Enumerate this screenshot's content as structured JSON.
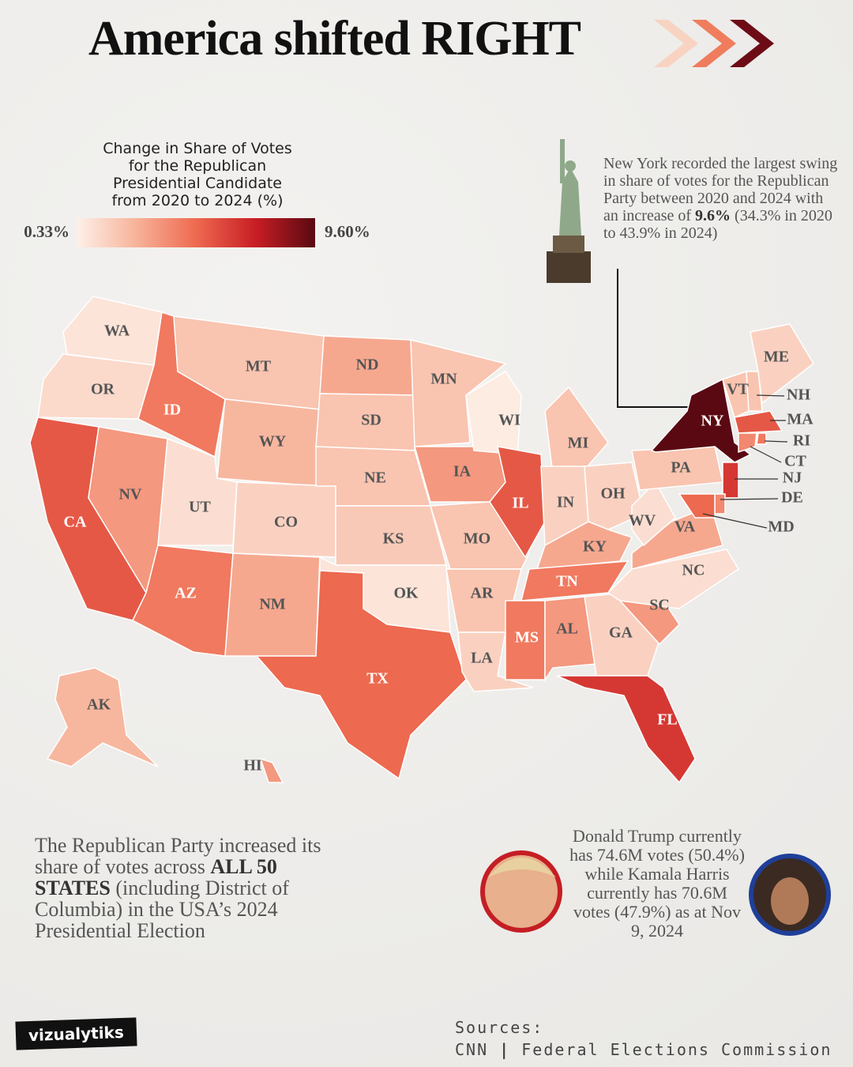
{
  "title": "America shifted RIGHT",
  "legend": {
    "title_lines": [
      "Change in Share of Votes",
      "for the Republican",
      "Presidential Candidate",
      "from 2020 to 2024 (%)"
    ],
    "ticks": [
      {
        "value": 0.33,
        "label": "0.33%"
      },
      {
        "value": 9.6,
        "label": "9.60%"
      }
    ],
    "colors": [
      "#fdf0e8",
      "#f7b39a",
      "#ee6a50",
      "#c81e24",
      "#5a0912"
    ]
  },
  "annotation": {
    "text": "New York recorded the largest swing in share of votes for the Republican Party between 2020 and 2024 with an increase of ",
    "bold": "9.6%",
    "text_end": " (34.3% in 2020 to 43.9% in 2024)"
  },
  "states": [
    {
      "label": "WA",
      "value": 0.8
    },
    {
      "label": "OR",
      "value": 1.2
    },
    {
      "label": "CA",
      "value": 5.5
    },
    {
      "label": "NV",
      "value": 3.5
    },
    {
      "label": "ID",
      "value": 4.5
    },
    {
      "label": "MT",
      "value": 2.0
    },
    {
      "label": "WY",
      "value": 2.5
    },
    {
      "label": "UT",
      "value": 1.0
    },
    {
      "label": "CO",
      "value": 1.5
    },
    {
      "label": "AZ",
      "value": 4.5
    },
    {
      "label": "NM",
      "value": 3.0
    },
    {
      "label": "ND",
      "value": 3.0
    },
    {
      "label": "SD",
      "value": 2.0
    },
    {
      "label": "NE",
      "value": 2.0
    },
    {
      "label": "KS",
      "value": 1.8
    },
    {
      "label": "OK",
      "value": 0.8
    },
    {
      "label": "TX",
      "value": 5.0
    },
    {
      "label": "MN",
      "value": 2.0
    },
    {
      "label": "IA",
      "value": 3.5
    },
    {
      "label": "MO",
      "value": 2.0
    },
    {
      "label": "AR",
      "value": 2.0
    },
    {
      "label": "LA",
      "value": 1.5
    },
    {
      "label": "WI",
      "value": 0.5
    },
    {
      "label": "IL",
      "value": 5.5
    },
    {
      "label": "MI",
      "value": 2.0
    },
    {
      "label": "IN",
      "value": 1.5
    },
    {
      "label": "OH",
      "value": 1.5
    },
    {
      "label": "KY",
      "value": 3.0
    },
    {
      "label": "TN",
      "value": 4.5
    },
    {
      "label": "MS",
      "value": 4.5
    },
    {
      "label": "AL",
      "value": 3.5
    },
    {
      "label": "GA",
      "value": 1.5
    },
    {
      "label": "FL",
      "value": 6.5
    },
    {
      "label": "SC",
      "value": 3.5
    },
    {
      "label": "NC",
      "value": 1.0
    },
    {
      "label": "VA",
      "value": 3.0
    },
    {
      "label": "WV",
      "value": 1.0
    },
    {
      "label": "PA",
      "value": 2.0
    },
    {
      "label": "NY",
      "value": 9.6
    },
    {
      "label": "VT",
      "value": 2.0
    },
    {
      "label": "NH",
      "value": 2.0
    },
    {
      "label": "ME",
      "value": 1.5
    },
    {
      "label": "MA",
      "value": 5.5
    },
    {
      "label": "RI",
      "value": 4.5
    },
    {
      "label": "CT",
      "value": 4.0
    },
    {
      "label": "NJ",
      "value": 6.5
    },
    {
      "label": "DE",
      "value": 4.0
    },
    {
      "label": "MD",
      "value": 5.0
    },
    {
      "label": "AK",
      "value": 2.5
    },
    {
      "label": "HI",
      "value": 3.5
    }
  ],
  "summary": {
    "text": "The Republican Party increased its share of votes across ",
    "bold": "ALL 50 STATES",
    "text_end": " (including District of Columbia) in the USA’s 2024 Presidential Election"
  },
  "candidates": "Donald Trump currently has 74.6M votes (50.4%) while Kamala Harris currently has 70.6M votes (47.9%) as at Nov 9, 2024",
  "sources": {
    "heading": "Sources:",
    "items": [
      "CNN",
      "Federal Elections Commission"
    ]
  },
  "brand": "vizualytiks"
}
